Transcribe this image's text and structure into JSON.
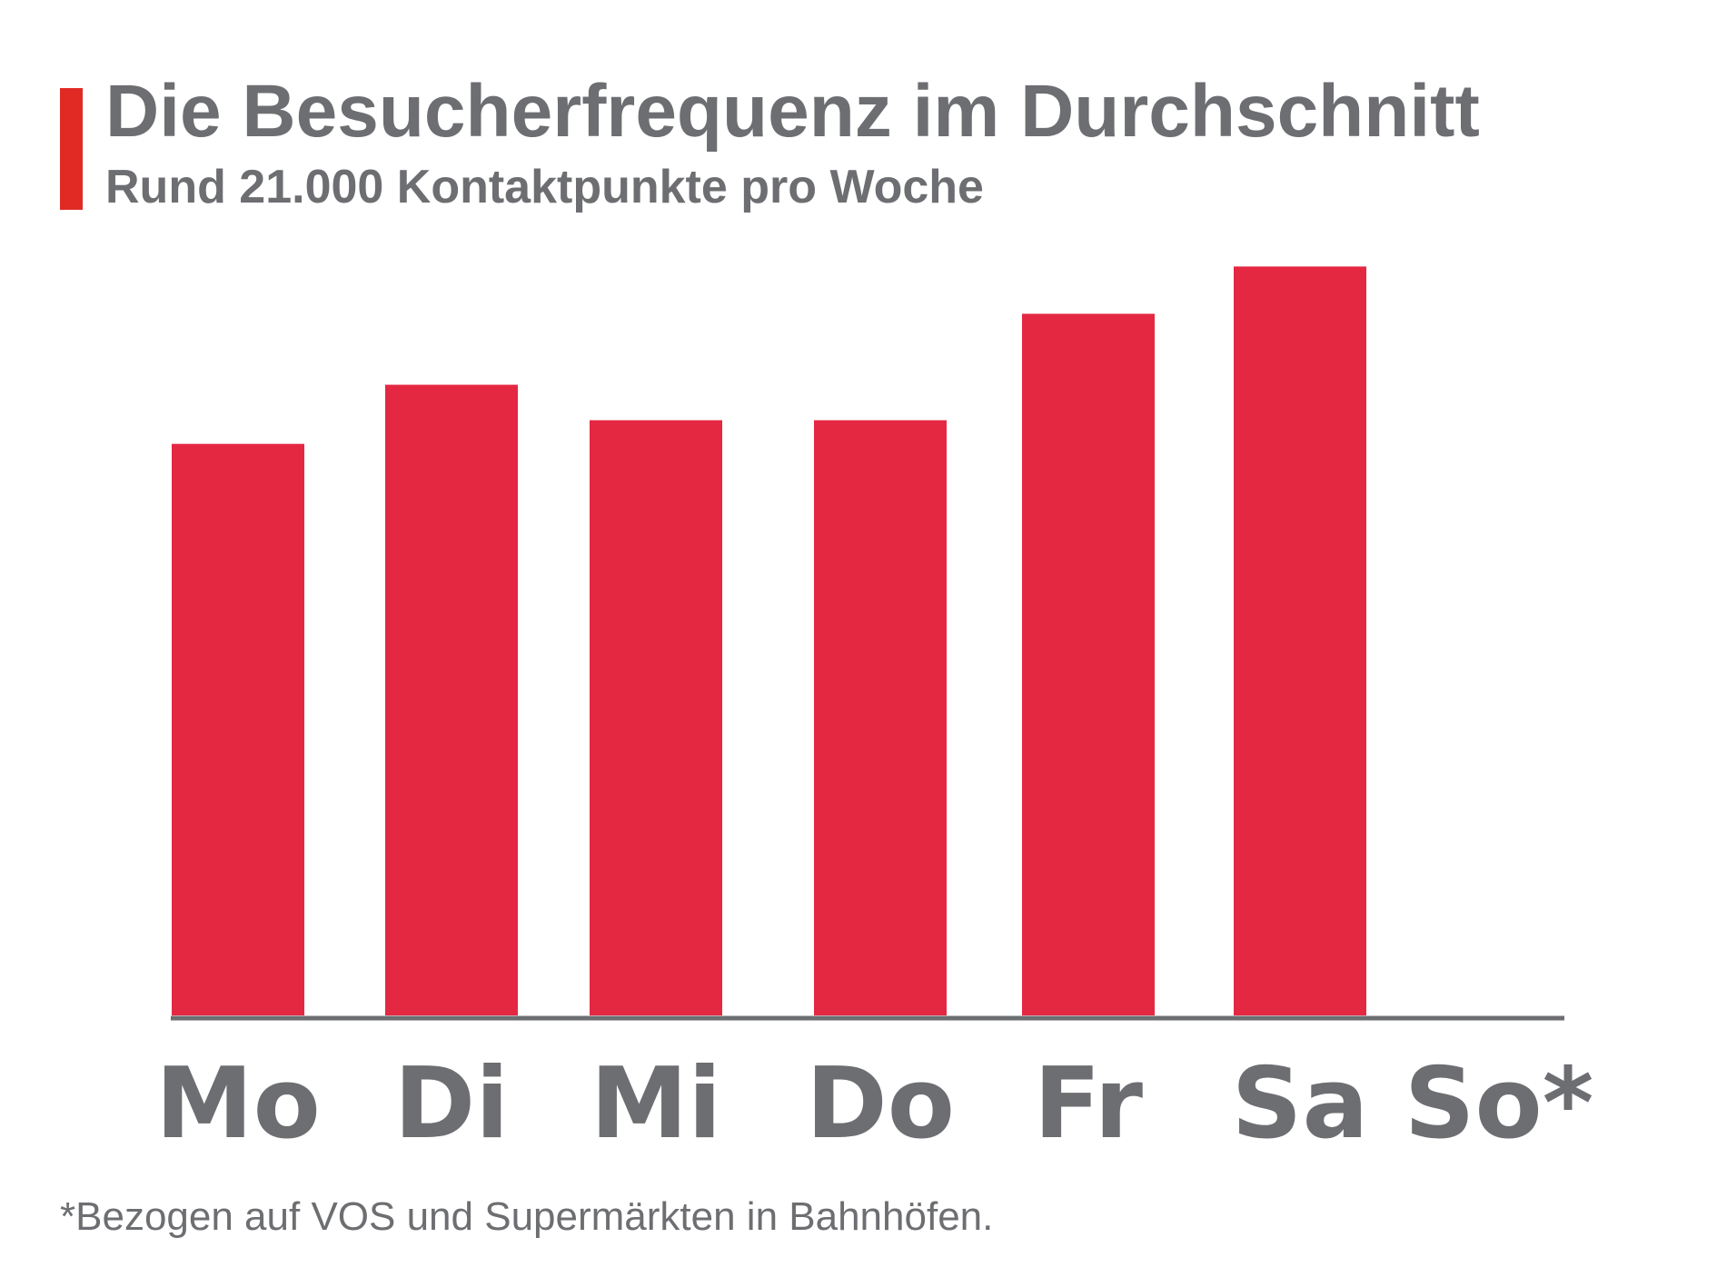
{
  "header": {
    "title": "Die Besucherfrequenz im Durchschnitt",
    "subtitle": "Rund 21.000 Kontaktpunkte pro Woche"
  },
  "footnote": "*Bezogen auf VOS und Supermärkten in Bahnhöfen.",
  "colors": {
    "accent": "#e12a24",
    "bar": "#e52842",
    "text": "#6d6e71",
    "axis": "#6d6e71"
  },
  "chart_data": {
    "type": "bar",
    "title": "Die Besucherfrequenz im Durchschnitt",
    "subtitle": "Rund 21.000 Kontaktpunkte pro Woche",
    "categories": [
      "Mo",
      "Di",
      "Mi",
      "Do",
      "Fr",
      "Sa",
      "So*"
    ],
    "values": [
      2900,
      3200,
      3020,
      3020,
      3560,
      3800,
      0
    ],
    "ylim": [
      0,
      4000
    ],
    "grid": false,
    "legend": "none"
  }
}
